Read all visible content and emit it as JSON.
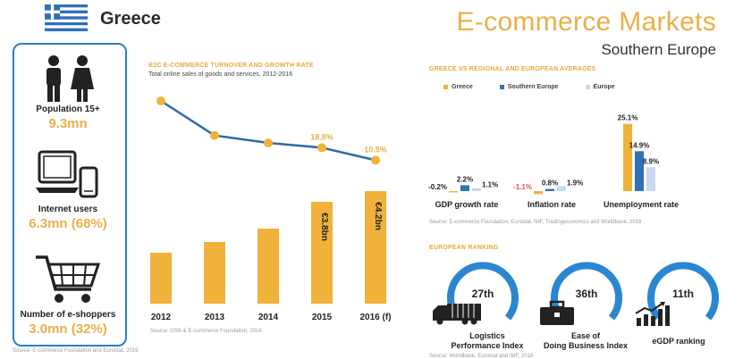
{
  "header": {
    "country": "Greece",
    "title": "E-commerce Markets",
    "subtitle": "Southern Europe"
  },
  "stats": [
    {
      "label": "Population 15+",
      "value": "9.3mn",
      "icon": "people-icon"
    },
    {
      "label": "Internet users",
      "value": "6.3mn (68%)",
      "icon": "computer-icon"
    },
    {
      "label": "Number of e-shoppers",
      "value": "3.0mn (32%)",
      "icon": "shopping-cart-icon"
    }
  ],
  "left_source": "Source: E-commerce Foundation and Eurostat, 2016",
  "turnover_section": {
    "title": "B2C E-COMMERCE TURNOVER AND GROWTH RATE",
    "subtitle": "Total online sales of goods and services, 2012-2016",
    "source": "Source: GSB & E-commerce Foundation, 2016"
  },
  "comparison_section": {
    "title": "GREECE VS REGIONAL AND EUROPEAN AVERAGES",
    "source": "Source: E-commerce Foundation, Eurostat, IMF, Tradingeconomics and Worldbank, 2016",
    "legend": [
      "Greece",
      "Southern Europe",
      "Europe"
    ]
  },
  "ranking_section": {
    "title": "EUROPEAN RANKING",
    "source": "Source: Worldbank, Eurostat and IMF, 2016",
    "items": [
      {
        "rank": "27th",
        "label_line1": "Logistics",
        "label_line2": "Performance Index",
        "icon": "truck-icon"
      },
      {
        "rank": "36th",
        "label_line1": "Ease of",
        "label_line2": "Doing Business Index",
        "icon": "briefcase-icon"
      },
      {
        "rank": "11th",
        "label_line1": "eGDP ranking",
        "label_line2": "",
        "icon": "growth-chart-icon"
      }
    ]
  },
  "colors": {
    "greece": "#f0b23a",
    "southern_europe": "#2e72b8",
    "europe": "#c9d9ee",
    "line": "#2c6da8",
    "accent": "#e8b04a",
    "ring": "#2a86d1"
  },
  "chart_data": [
    {
      "type": "bar",
      "title": "B2C E-COMMERCE TURNOVER AND GROWTH RATE",
      "categories": [
        "2012",
        "2013",
        "2014",
        "2015",
        "2016 (f)"
      ],
      "series": [
        {
          "values": [
            1.9,
            2.3,
            2.8,
            3.8,
            4.2
          ],
          "value_labels": [
            "",
            "",
            "",
            "€3.8bn",
            "€4.2bn"
          ]
        },
        {
          "values": [
            50.0,
            27.0,
            22.0,
            18.8,
            10.5
          ],
          "value_labels": [
            "",
            "",
            "",
            "18.8%",
            "10.5%"
          ]
        }
      ]
    },
    {
      "type": "bar",
      "categories": [
        "GDP growth rate",
        "Inflation rate",
        "Unemployment rate"
      ],
      "series": [
        {
          "name": "Greece",
          "values": [
            -0.2,
            -1.1,
            25.1
          ],
          "value_labels": [
            "-0.2%",
            "-1.1%",
            "25.1%"
          ]
        },
        {
          "name": "Southern Europe",
          "values": [
            2.2,
            0.8,
            14.9
          ],
          "value_labels": [
            "2.2%",
            "0.8%",
            "14.9%"
          ]
        },
        {
          "name": "Europe",
          "values": [
            1.1,
            1.9,
            8.9
          ],
          "value_labels": [
            "1.1%",
            "1.9%",
            "8.9%"
          ]
        }
      ]
    }
  ]
}
